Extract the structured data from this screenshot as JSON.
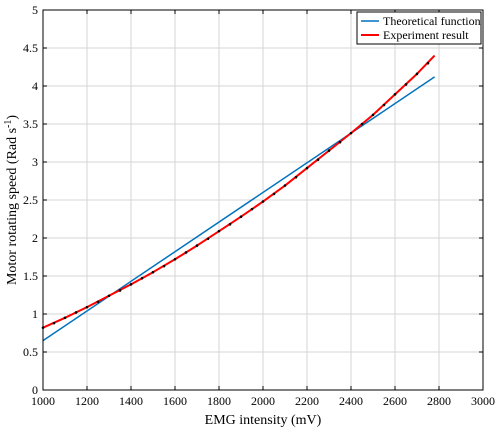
{
  "chart_data": {
    "type": "line",
    "xlabel": "EMG intensity (mV)",
    "ylabel_main": "Motor rotating speed (Rad s",
    "ylabel_sup": "-1",
    "ylabel_close": ")",
    "xlim": [
      1000,
      3000
    ],
    "ylim": [
      0,
      5
    ],
    "xticks": [
      1000,
      1200,
      1400,
      1600,
      1800,
      2000,
      2200,
      2400,
      2600,
      2800,
      3000
    ],
    "yticks": [
      0,
      0.5,
      1,
      1.5,
      2,
      2.5,
      3,
      3.5,
      4,
      4.5,
      5
    ],
    "xtick_labels": [
      "1000",
      "1200",
      "1400",
      "1600",
      "1800",
      "2000",
      "2200",
      "2400",
      "2600",
      "2800",
      "3000"
    ],
    "ytick_labels": [
      "0",
      "0.5",
      "1",
      "1.5",
      "2",
      "2.5",
      "3",
      "3.5",
      "4",
      "4.5",
      "5"
    ],
    "grid": true,
    "legend_position": "top-right",
    "series": [
      {
        "name": "Theoretical function",
        "color": "#0072BD",
        "x": [
          1000,
          2780
        ],
        "y": [
          0.65,
          4.12
        ]
      },
      {
        "name": "Experiment result",
        "color": "#FF0000",
        "x": [
          1000,
          1100,
          1200,
          1300,
          1400,
          1500,
          1600,
          1700,
          1800,
          1900,
          2000,
          2100,
          2200,
          2300,
          2400,
          2500,
          2600,
          2700,
          2780
        ],
        "y": [
          0.82,
          0.95,
          1.09,
          1.24,
          1.39,
          1.55,
          1.72,
          1.9,
          2.09,
          2.28,
          2.48,
          2.69,
          2.92,
          3.15,
          3.38,
          3.62,
          3.89,
          4.16,
          4.4
        ]
      }
    ],
    "scatter_points": {
      "color": "#000000",
      "x": [
        1000,
        1050,
        1100,
        1150,
        1200,
        1250,
        1300,
        1350,
        1400,
        1450,
        1500,
        1550,
        1600,
        1650,
        1700,
        1750,
        1800,
        1850,
        1900,
        1950,
        2000,
        2050,
        2100,
        2150,
        2200,
        2250,
        2300,
        2350,
        2400,
        2450,
        2500,
        2550,
        2600,
        2650,
        2700,
        2750
      ],
      "y": [
        0.82,
        0.88,
        0.95,
        1.02,
        1.09,
        1.16,
        1.24,
        1.31,
        1.39,
        1.47,
        1.55,
        1.63,
        1.72,
        1.81,
        1.9,
        1.99,
        2.09,
        2.18,
        2.28,
        2.38,
        2.48,
        2.58,
        2.69,
        2.8,
        2.92,
        3.03,
        3.15,
        3.26,
        3.38,
        3.5,
        3.62,
        3.75,
        3.89,
        4.02,
        4.16,
        4.3
      ]
    }
  }
}
